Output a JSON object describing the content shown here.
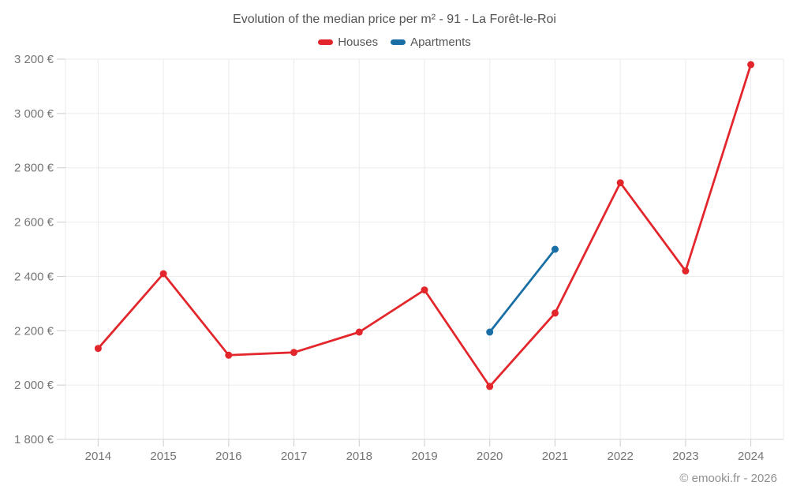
{
  "title": "Evolution of the median price per m² - 91 - La Forêt-le-Roi",
  "legend": {
    "items": [
      {
        "label": "Houses",
        "color": "#e2262b"
      },
      {
        "label": "Apartments",
        "color": "#196fa5"
      }
    ]
  },
  "footer": {
    "copyright": "© emooki.fr - 2026"
  },
  "colors": {
    "grid": "#ebebeb",
    "axis_line": "#d6d6d6",
    "tick": "#cccccc",
    "axis_label": "#757575",
    "background": "#ffffff"
  },
  "chart_data": {
    "type": "line",
    "title": "Evolution of the median price per m² - 91 - La Forêt-le-Roi",
    "categories": [
      2014,
      2015,
      2016,
      2017,
      2018,
      2019,
      2020,
      2021,
      2022,
      2023,
      2024
    ],
    "series": [
      {
        "name": "Houses",
        "color": "#e2262b",
        "points": [
          [
            2014,
            2135
          ],
          [
            2015,
            2410
          ],
          [
            2016,
            2110
          ],
          [
            2017,
            2120
          ],
          [
            2018,
            2195
          ],
          [
            2019,
            2350
          ],
          [
            2020,
            1995
          ],
          [
            2021,
            2265
          ],
          [
            2022,
            2745
          ],
          [
            2023,
            2420
          ],
          [
            2024,
            3180
          ]
        ]
      },
      {
        "name": "Apartments",
        "color": "#196fa5",
        "points": [
          [
            2020,
            2195
          ],
          [
            2021,
            2500
          ]
        ]
      }
    ],
    "xlabel": "",
    "ylabel": "",
    "ylim": [
      1800,
      3200
    ],
    "ytick_step": 200,
    "ytick_labels": [
      "1 800 €",
      "2 000 €",
      "2 200 €",
      "2 400 €",
      "2 600 €",
      "2 800 €",
      "3 000 €",
      "3 200 €"
    ],
    "grid": true,
    "legend_position": "top",
    "unit": "€"
  }
}
